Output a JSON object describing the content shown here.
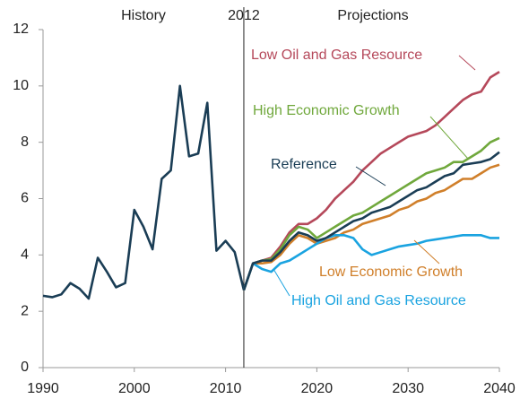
{
  "chart_data": {
    "type": "line",
    "annotations": [
      "History",
      "2012",
      "Projections"
    ],
    "x": [
      1990,
      1991,
      1992,
      1993,
      1994,
      1995,
      1996,
      1997,
      1998,
      1999,
      2000,
      2001,
      2002,
      2003,
      2004,
      2005,
      2006,
      2007,
      2008,
      2009,
      2010,
      2011,
      2012,
      2013,
      2014,
      2015,
      2016,
      2017,
      2018,
      2019,
      2020,
      2021,
      2022,
      2023,
      2024,
      2025,
      2026,
      2027,
      2028,
      2029,
      2030,
      2031,
      2032,
      2033,
      2034,
      2035,
      2036,
      2037,
      2038,
      2039,
      2040
    ],
    "series": [
      {
        "color": "#1a3d55",
        "values": [
          2.55,
          2.5,
          2.6,
          3.0,
          2.8,
          2.45,
          3.9,
          3.4,
          2.85,
          3.0,
          5.6,
          5.0,
          4.2,
          6.7,
          7.0,
          10.0,
          7.5,
          7.6,
          9.4,
          4.15,
          4.5,
          4.1,
          2.75,
          null,
          null,
          null,
          null,
          null,
          null,
          null,
          null,
          null,
          null,
          null,
          null,
          null,
          null,
          null,
          null,
          null,
          null,
          null,
          null,
          null,
          null,
          null,
          null,
          null,
          null,
          null,
          null
        ]
      },
      {
        "name": "Low Oil and Gas Resource",
        "color": "#b5485a",
        "values": [
          null,
          null,
          null,
          null,
          null,
          null,
          null,
          null,
          null,
          null,
          null,
          null,
          null,
          null,
          null,
          null,
          null,
          null,
          null,
          null,
          null,
          null,
          2.75,
          3.7,
          3.8,
          3.9,
          4.3,
          4.8,
          5.1,
          5.1,
          5.3,
          5.6,
          6.0,
          6.3,
          6.6,
          7.0,
          7.3,
          7.6,
          7.8,
          8.0,
          8.2,
          8.3,
          8.4,
          8.6,
          8.9,
          9.2,
          9.5,
          9.7,
          9.8,
          10.3,
          10.5
        ]
      },
      {
        "name": "High Economic Growth",
        "color": "#70a83c",
        "values": [
          null,
          null,
          null,
          null,
          null,
          null,
          null,
          null,
          null,
          null,
          null,
          null,
          null,
          null,
          null,
          null,
          null,
          null,
          null,
          null,
          null,
          null,
          2.75,
          3.7,
          3.8,
          3.85,
          4.2,
          4.7,
          5.0,
          4.9,
          4.6,
          4.8,
          5.0,
          5.2,
          5.4,
          5.5,
          5.7,
          5.9,
          6.1,
          6.3,
          6.5,
          6.7,
          6.9,
          7.0,
          7.1,
          7.3,
          7.3,
          7.5,
          7.7,
          8.0,
          8.15
        ]
      },
      {
        "name": "Low Economic Growth",
        "color": "#d07f2a",
        "values": [
          null,
          null,
          null,
          null,
          null,
          null,
          null,
          null,
          null,
          null,
          null,
          null,
          null,
          null,
          null,
          null,
          null,
          null,
          null,
          null,
          null,
          null,
          2.75,
          3.7,
          3.7,
          3.75,
          4.0,
          4.4,
          4.7,
          4.6,
          4.4,
          4.5,
          4.6,
          4.8,
          4.9,
          5.1,
          5.2,
          5.3,
          5.4,
          5.6,
          5.7,
          5.9,
          6.0,
          6.2,
          6.3,
          6.5,
          6.7,
          6.7,
          6.9,
          7.1,
          7.2
        ]
      },
      {
        "name": "High Oil and Gas Resource",
        "color": "#1aa3e0",
        "values": [
          null,
          null,
          null,
          null,
          null,
          null,
          null,
          null,
          null,
          null,
          null,
          null,
          null,
          null,
          null,
          null,
          null,
          null,
          null,
          null,
          null,
          null,
          2.75,
          3.7,
          3.5,
          3.4,
          3.7,
          3.8,
          4.0,
          4.2,
          4.4,
          4.6,
          4.7,
          4.7,
          4.6,
          4.2,
          4.0,
          4.1,
          4.2,
          4.3,
          4.35,
          4.4,
          4.5,
          4.55,
          4.6,
          4.65,
          4.7,
          4.7,
          4.7,
          4.6,
          4.6
        ]
      },
      {
        "name": "Reference",
        "color": "#1a3d55",
        "values": [
          null,
          null,
          null,
          null,
          null,
          null,
          null,
          null,
          null,
          null,
          null,
          null,
          null,
          null,
          null,
          null,
          null,
          null,
          null,
          null,
          null,
          null,
          2.75,
          3.7,
          3.8,
          3.8,
          4.1,
          4.5,
          4.8,
          4.7,
          4.5,
          4.6,
          4.8,
          5.0,
          5.2,
          5.3,
          5.5,
          5.6,
          5.7,
          5.9,
          6.1,
          6.3,
          6.4,
          6.6,
          6.8,
          6.9,
          7.2,
          7.25,
          7.3,
          7.4,
          7.65
        ]
      }
    ],
    "xlim": [
      1990,
      2040
    ],
    "xticks": [
      1990,
      2000,
      2010,
      2020,
      2030,
      2040
    ],
    "ylim": [
      0,
      12
    ],
    "yticks": [
      0,
      2,
      4,
      6,
      8,
      10,
      12
    ],
    "divider": 2012
  }
}
